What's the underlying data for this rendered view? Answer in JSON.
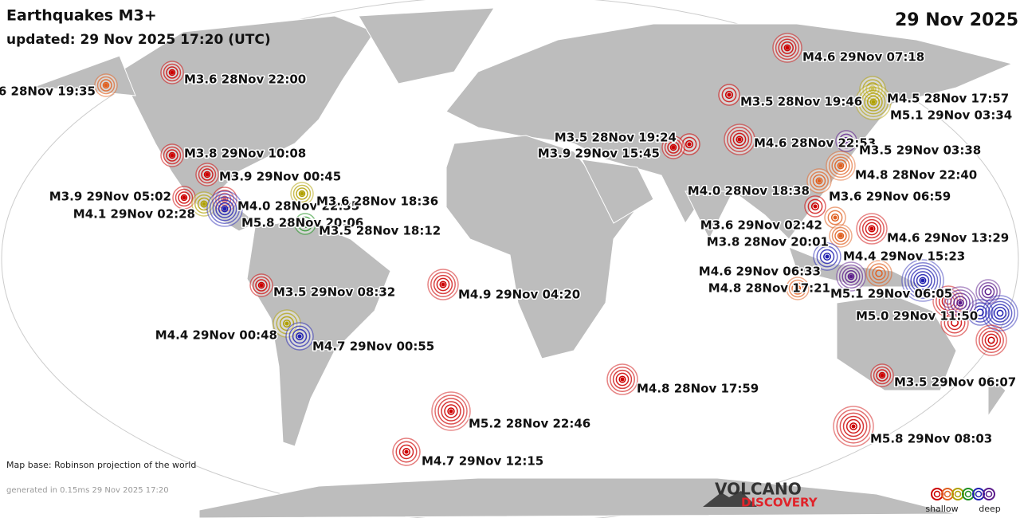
{
  "header": {
    "title": "Earthquakes M3+",
    "updated": "updated: 29 Nov 2025 17:20 (UTC)",
    "date": "29 Nov 2025"
  },
  "footer": {
    "map_base": "Map base: Robinson projection of the world",
    "generated": "generated in 0.15ms 29 Nov 2025 17:20",
    "logo_top": "VOLCANO",
    "logo_bottom": "DISCOVERY"
  },
  "legend": {
    "shallow": "shallow",
    "deep": "deep",
    "colors": [
      "#cc0000",
      "#e06020",
      "#b0a000",
      "#209020",
      "#2020b0",
      "#5a1a8a"
    ]
  },
  "quakes": [
    {
      "label": "6 28Nov 19:35",
      "color": "#e06020"
    },
    {
      "label": "M3.6 28Nov 22:00",
      "color": "#cc0000"
    },
    {
      "label": "M3.8 29Nov 10:08",
      "color": "#cc0000"
    },
    {
      "label": "M3.9 29Nov 00:45",
      "color": "#cc0000"
    },
    {
      "label": "M3.9 29Nov 05:02",
      "color": "#cc0000"
    },
    {
      "label": "M4.1 29Nov 02:28",
      "color": "#b0a000"
    },
    {
      "label": "M4.0 28Nov 22:35",
      "color": "#cc0000"
    },
    {
      "label": "M5.8 28Nov 20:06",
      "color": "#2020b0"
    },
    {
      "label": "M3.6 28Nov 18:36",
      "color": "#b0a000"
    },
    {
      "label": "M3.5 28Nov 18:12",
      "color": "#209020"
    },
    {
      "label": "M3.5 29Nov 08:32",
      "color": "#cc0000"
    },
    {
      "label": "M4.4 29Nov 00:48",
      "color": "#b0a000"
    },
    {
      "label": "M4.7 29Nov 00:55",
      "color": "#2020b0"
    },
    {
      "label": "M4.9 29Nov 04:20",
      "color": "#cc0000"
    },
    {
      "label": "M4.8 28Nov 17:59",
      "color": "#cc0000"
    },
    {
      "label": "M5.2 28Nov 22:46",
      "color": "#cc0000"
    },
    {
      "label": "M4.7 29Nov 12:15",
      "color": "#cc0000"
    },
    {
      "label": "M4.6 29Nov 07:18",
      "color": "#cc0000"
    },
    {
      "label": "M3.5 28Nov 19:46",
      "color": "#cc0000"
    },
    {
      "label": "M4.5 28Nov 17:57",
      "color": "#b0a000"
    },
    {
      "label": "M5.1 29Nov 03:34",
      "color": "#b0a000"
    },
    {
      "label": "M3.5 28Nov 19:24",
      "color": "#cc0000"
    },
    {
      "label": "M3.9 29Nov 15:45",
      "color": "#cc0000"
    },
    {
      "label": "M4.6 28Nov 22:53",
      "color": "#cc0000"
    },
    {
      "label": "M3.5 29Nov 03:38",
      "color": "#5a1a8a"
    },
    {
      "label": "M4.8 28Nov 22:40",
      "color": "#e06020"
    },
    {
      "label": "M4.0 28Nov 18:38",
      "color": "#e06020"
    },
    {
      "label": "M3.6 29Nov 06:59",
      "color": "#cc0000"
    },
    {
      "label": "M3.6 29Nov 02:42",
      "color": "#e06020"
    },
    {
      "label": "M3.8 28Nov 20:01",
      "color": "#e06020"
    },
    {
      "label": "M4.6 29Nov 13:29",
      "color": "#cc0000"
    },
    {
      "label": "M4.4 29Nov 15:23",
      "color": "#2020b0"
    },
    {
      "label": "M4.6 29Nov 06:33",
      "color": "#5a1a8a"
    },
    {
      "label": "M4.8 28Nov 17:21",
      "color": "#e06020"
    },
    {
      "label": "M5.1 29Nov 06:05",
      "color": "#2020b0"
    },
    {
      "label": "M5.0 29Nov 11:50",
      "color": "#5a1a8a"
    },
    {
      "label": "M3.5 29Nov 06:07",
      "color": "#cc0000"
    },
    {
      "label": "M5.8 29Nov 08:03",
      "color": "#cc0000"
    }
  ]
}
